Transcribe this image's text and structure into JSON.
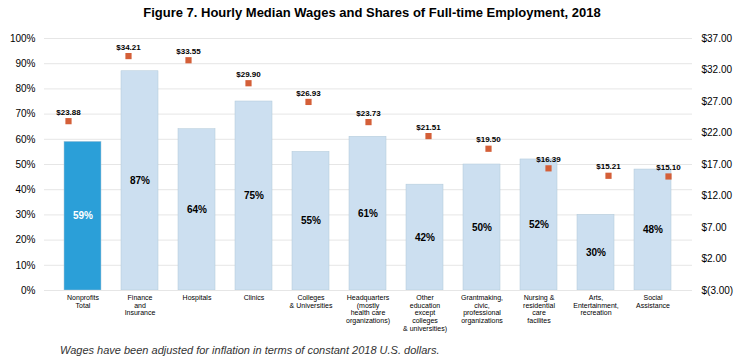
{
  "chart_data": {
    "type": "bar",
    "title": "Figure 7. Hourly Median Wages and Shares of Full-time Employment, 2018",
    "footnote": "Wages have been adjusted for inflation in terms of constant 2018 U.S. dollars.",
    "categories": [
      "Nonprofits\nTotal",
      "Finance\nand\nInsurance",
      "Hospitals",
      "Clinics",
      "Colleges\n& Universities",
      "Headquarters\n(mostly\nhealth care\norganizations)",
      "Other\neducation\nexcept\ncolleges\n& universities)",
      "Grantmaking,\ncivic,\nprofessional\norganizations",
      "Nursing &\nresidential\ncare\nfacilites",
      "Arts,\nEntertainment,\nrecreation",
      "Social\nAssistance"
    ],
    "series": [
      {
        "type": "bar",
        "values": [
          59,
          87,
          64,
          75,
          55,
          61,
          42,
          50,
          52,
          30,
          48
        ],
        "value_labels": [
          "59%",
          "87%",
          "64%",
          "75%",
          "55%",
          "61%",
          "42%",
          "50%",
          "52%",
          "30%",
          "48%"
        ],
        "colors": [
          "#2b9fd8",
          "#ccdff0",
          "#ccdff0",
          "#ccdff0",
          "#ccdff0",
          "#ccdff0",
          "#ccdff0",
          "#ccdff0",
          "#ccdff0",
          "#ccdff0",
          "#ccdff0"
        ],
        "data_labels": true
      },
      {
        "type": "scatter",
        "axis": "y2",
        "marker": "square",
        "color": "#d45f38",
        "values": [
          23.88,
          34.21,
          33.55,
          29.9,
          26.93,
          23.73,
          21.51,
          19.5,
          16.39,
          15.21,
          15.1
        ],
        "value_labels": [
          "$23.88",
          "$34.21",
          "$33.55",
          "$29.90",
          "$26.93",
          "$23.73",
          "$21.51",
          "$19.50",
          "$16.39",
          "$15.21",
          "$15.10"
        ],
        "data_labels": true
      }
    ],
    "ylim": [
      0,
      100
    ],
    "yticks": [
      {
        "value": 0,
        "label": "0%"
      },
      {
        "value": 10,
        "label": "10%"
      },
      {
        "value": 20,
        "label": "20%"
      },
      {
        "value": 30,
        "label": "30%"
      },
      {
        "value": 40,
        "label": "40%"
      },
      {
        "value": 50,
        "label": "50%"
      },
      {
        "value": 60,
        "label": "60%"
      },
      {
        "value": 70,
        "label": "70%"
      },
      {
        "value": 80,
        "label": "80%"
      },
      {
        "value": 90,
        "label": "90%"
      },
      {
        "value": 100,
        "label": "100%"
      }
    ],
    "y2lim": [
      -3,
      37
    ],
    "y2ticks": [
      {
        "value": -3,
        "label": "$(3.00)"
      },
      {
        "value": 2,
        "label": "$2.00"
      },
      {
        "value": 7,
        "label": "$7.00"
      },
      {
        "value": 12,
        "label": "$12.00"
      },
      {
        "value": 17,
        "label": "$17.00"
      },
      {
        "value": 22,
        "label": "$22.00"
      },
      {
        "value": 27,
        "label": "$27.00"
      },
      {
        "value": 32,
        "label": "$32.00"
      },
      {
        "value": 37,
        "label": "$37.00"
      }
    ],
    "grid": true
  }
}
